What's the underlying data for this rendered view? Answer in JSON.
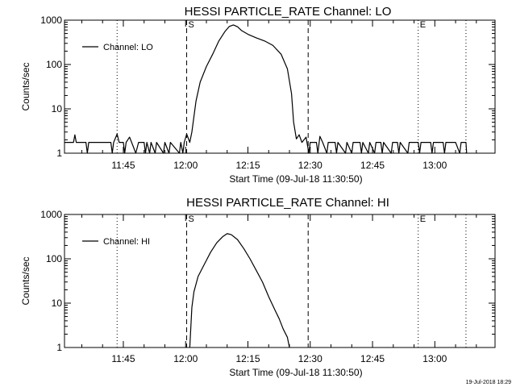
{
  "time_ticks": [
    "11:45",
    "12:00",
    "12:15",
    "12:30",
    "12:45",
    "13:00"
  ],
  "xlabel": "Start Time (09-Jul-18 11:30:50)",
  "ylabel": "Counts/sec",
  "ytick_labels": [
    "1",
    "10",
    "100",
    "1000"
  ],
  "footer_stamp": "19-Jul-2018 18:29",
  "chart_data": [
    {
      "type": "line",
      "title": "HESSI PARTICLE_RATE Channel: LO",
      "xlabel": "Start Time (09-Jul-18 11:30:50)",
      "ylabel": "Counts/sec",
      "y_scale": "log",
      "ylim": [
        1,
        1000
      ],
      "xlim": [
        "11:30:50",
        "13:14:30"
      ],
      "grid": false,
      "legend": "top-left",
      "markers": [
        {
          "label": "S",
          "time": "12:00:15",
          "style": "dashed"
        },
        {
          "label": "",
          "time": "12:29:30",
          "style": "dashed"
        },
        {
          "label": "",
          "time": "11:43:30",
          "style": "dotted"
        },
        {
          "label": "E",
          "time": "12:56:00",
          "style": "dotted"
        },
        {
          "label": "",
          "time": "13:07:30",
          "style": "dotted"
        }
      ],
      "series": [
        {
          "name": "Channel: LO",
          "color": "#000000",
          "points": [
            [
              "11:30:50",
              1.75
            ],
            [
              "11:33:00",
              1.75
            ],
            [
              "11:33:20",
              2.6
            ],
            [
              "11:33:40",
              1.75
            ],
            [
              "11:36:00",
              1.75
            ],
            [
              "11:36:20",
              1.0
            ],
            [
              "11:36:40",
              1.75
            ],
            [
              "11:42:00",
              1.75
            ],
            [
              "11:42:20",
              1.0
            ],
            [
              "11:42:40",
              1.75
            ],
            [
              "11:43:30",
              2.7
            ],
            [
              "11:44:00",
              1.75
            ],
            [
              "11:45:00",
              1.75
            ],
            [
              "11:45:20",
              1.0
            ],
            [
              "11:45:40",
              1.75
            ],
            [
              "11:46:30",
              2.3
            ],
            [
              "11:47:00",
              1.75
            ],
            [
              "11:48:00",
              1.0
            ],
            [
              "11:48:40",
              1.75
            ],
            [
              "11:50:00",
              1.75
            ],
            [
              "11:50:20",
              1.0
            ],
            [
              "11:50:40",
              1.75
            ],
            [
              "11:51:20",
              1.0
            ],
            [
              "11:51:40",
              1.75
            ],
            [
              "11:52:40",
              1.0
            ],
            [
              "11:53:00",
              1.75
            ],
            [
              "11:54:40",
              1.0
            ],
            [
              "11:55:00",
              1.75
            ],
            [
              "11:56:00",
              1.0
            ],
            [
              "11:56:20",
              1.75
            ],
            [
              "11:58:30",
              1.0
            ],
            [
              "11:58:50",
              1.75
            ],
            [
              "11:59:20",
              1.0
            ],
            [
              "11:59:40",
              1.75
            ],
            [
              "12:00:15",
              2.7
            ],
            [
              "12:01:00",
              1.75
            ],
            [
              "12:01:30",
              3.0
            ],
            [
              "12:02:30",
              15
            ],
            [
              "12:03:30",
              40
            ],
            [
              "12:05:00",
              90
            ],
            [
              "12:06:30",
              170
            ],
            [
              "12:08:00",
              340
            ],
            [
              "12:09:30",
              560
            ],
            [
              "12:10:30",
              720
            ],
            [
              "12:11:30",
              780
            ],
            [
              "12:12:30",
              710
            ],
            [
              "12:13:30",
              580
            ],
            [
              "12:15:00",
              480
            ],
            [
              "12:17:00",
              400
            ],
            [
              "12:19:00",
              340
            ],
            [
              "12:21:00",
              270
            ],
            [
              "12:23:00",
              170
            ],
            [
              "12:24:30",
              80
            ],
            [
              "12:25:30",
              22
            ],
            [
              "12:26:00",
              5
            ],
            [
              "12:26:40",
              2.1
            ],
            [
              "12:27:20",
              2.6
            ],
            [
              "12:28:00",
              1.75
            ],
            [
              "12:29:00",
              2.3
            ],
            [
              "12:29:40",
              1.0
            ],
            [
              "12:30:00",
              1.75
            ],
            [
              "12:31:30",
              1.75
            ],
            [
              "12:31:50",
              1.0
            ],
            [
              "12:32:20",
              2.4
            ],
            [
              "12:33:00",
              1.75
            ],
            [
              "12:34:00",
              1.0
            ],
            [
              "12:34:20",
              1.75
            ],
            [
              "12:36:00",
              1.75
            ],
            [
              "12:36:20",
              1.0
            ],
            [
              "12:36:40",
              1.75
            ],
            [
              "12:38:30",
              1.0
            ],
            [
              "12:38:50",
              1.75
            ],
            [
              "12:40:00",
              1.0
            ],
            [
              "12:40:20",
              1.75
            ],
            [
              "12:42:00",
              1.75
            ],
            [
              "12:42:20",
              1.0
            ],
            [
              "12:42:40",
              1.75
            ],
            [
              "12:44:00",
              1.0
            ],
            [
              "12:44:20",
              1.75
            ],
            [
              "12:45:30",
              1.0
            ],
            [
              "12:45:50",
              1.75
            ],
            [
              "12:47:00",
              1.75
            ],
            [
              "12:47:20",
              1.0
            ],
            [
              "12:47:40",
              1.75
            ],
            [
              "12:49:30",
              1.0
            ],
            [
              "12:49:50",
              1.75
            ],
            [
              "12:51:00",
              1.75
            ],
            [
              "12:51:20",
              1.0
            ],
            [
              "12:51:40",
              1.75
            ],
            [
              "12:53:30",
              1.0
            ],
            [
              "12:53:50",
              1.75
            ],
            [
              "12:56:00",
              1.75
            ],
            [
              "12:56:20",
              1.0
            ],
            [
              "12:56:40",
              1.75
            ],
            [
              "12:59:00",
              1.75
            ],
            [
              "12:59:20",
              1.0
            ],
            [
              "12:59:40",
              1.75
            ],
            [
              "13:02:00",
              1.75
            ],
            [
              "13:02:20",
              1.0
            ],
            [
              "13:02:40",
              1.75
            ],
            [
              "13:05:00",
              1.75
            ],
            [
              "13:06:00",
              1.0
            ],
            [
              "13:06:20",
              1.75
            ],
            [
              "13:07:30",
              1.75
            ],
            [
              "13:07:40",
              1.0
            ]
          ]
        }
      ]
    },
    {
      "type": "line",
      "title": "HESSI PARTICLE_RATE Channel: HI",
      "xlabel": "Start Time (09-Jul-18 11:30:50)",
      "ylabel": "Counts/sec",
      "y_scale": "log",
      "ylim": [
        1,
        1000
      ],
      "xlim": [
        "11:30:50",
        "13:14:30"
      ],
      "grid": false,
      "legend": "top-left",
      "markers": [
        {
          "label": "S",
          "time": "12:00:15",
          "style": "dashed"
        },
        {
          "label": "",
          "time": "12:29:30",
          "style": "dashed"
        },
        {
          "label": "",
          "time": "11:43:30",
          "style": "dotted"
        },
        {
          "label": "E",
          "time": "12:56:00",
          "style": "dotted"
        },
        {
          "label": "",
          "time": "13:07:30",
          "style": "dotted"
        }
      ],
      "series": [
        {
          "name": "Channel: HI",
          "color": "#000000",
          "points": [
            [
              "12:01:00",
              1.0
            ],
            [
              "12:01:30",
              8
            ],
            [
              "12:02:00",
              18
            ],
            [
              "12:03:00",
              40
            ],
            [
              "12:04:30",
              75
            ],
            [
              "12:06:00",
              140
            ],
            [
              "12:07:30",
              230
            ],
            [
              "12:09:00",
              320
            ],
            [
              "12:10:00",
              370
            ],
            [
              "12:11:00",
              350
            ],
            [
              "12:12:30",
              270
            ],
            [
              "12:14:00",
              170
            ],
            [
              "12:15:30",
              100
            ],
            [
              "12:17:00",
              55
            ],
            [
              "12:18:30",
              30
            ],
            [
              "12:20:00",
              14
            ],
            [
              "12:21:30",
              7
            ],
            [
              "12:22:30",
              4.5
            ],
            [
              "12:23:30",
              2.6
            ],
            [
              "12:24:30",
              1.7
            ],
            [
              "12:25:00",
              1.0
            ]
          ]
        }
      ]
    }
  ]
}
